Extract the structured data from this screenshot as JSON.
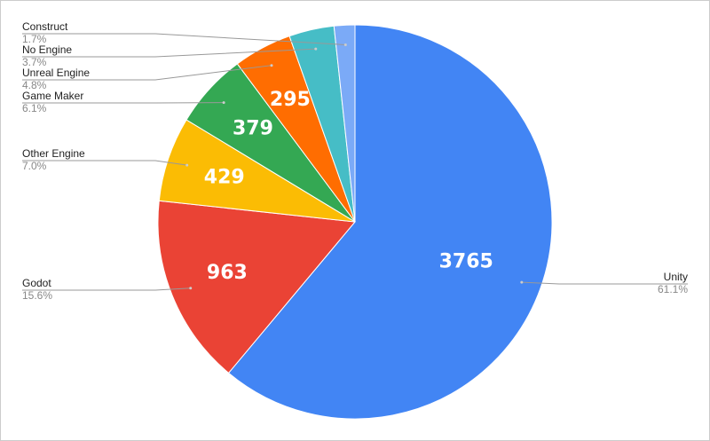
{
  "chart_data": {
    "type": "pie",
    "categories": [
      "Unity",
      "Godot",
      "Other Engine",
      "Game Maker",
      "Unreal Engine",
      "No Engine",
      "Construct"
    ],
    "values": [
      3765,
      963,
      429,
      379,
      295,
      228,
      105
    ],
    "percent_labels": [
      "61.1%",
      "15.6%",
      "7.0%",
      "6.1%",
      "4.8%",
      "3.7%",
      "1.7%"
    ],
    "colors": [
      "#4285f4",
      "#ea4335",
      "#fbbc04",
      "#34a853",
      "#ff6d01",
      "#46bdc6",
      "#7baaf7"
    ]
  }
}
